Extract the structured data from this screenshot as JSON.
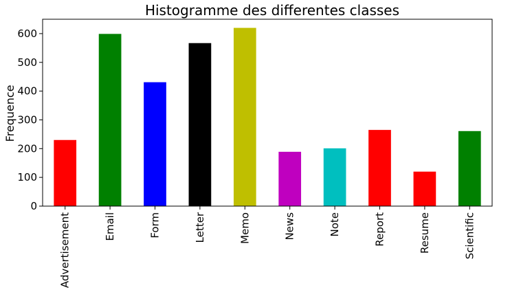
{
  "chart_data": {
    "type": "bar",
    "title": "Histogramme des differentes classes",
    "xlabel": "",
    "ylabel": "Frequence",
    "categories": [
      "Advertisement",
      "Email",
      "Form",
      "Letter",
      "Memo",
      "News",
      "Note",
      "Report",
      "Resume",
      "Scientific"
    ],
    "values": [
      230,
      599,
      431,
      567,
      620,
      189,
      201,
      265,
      120,
      261
    ],
    "colors": [
      "#ff0000",
      "#008000",
      "#0000ff",
      "#000000",
      "#bfbf00",
      "#bf00bf",
      "#00bfbf",
      "#ff0000",
      "#ff0000",
      "#008000"
    ],
    "ylim": [
      0,
      650
    ],
    "yticks": [
      0,
      100,
      200,
      300,
      400,
      500,
      600
    ],
    "grid": false,
    "legend": "none"
  }
}
